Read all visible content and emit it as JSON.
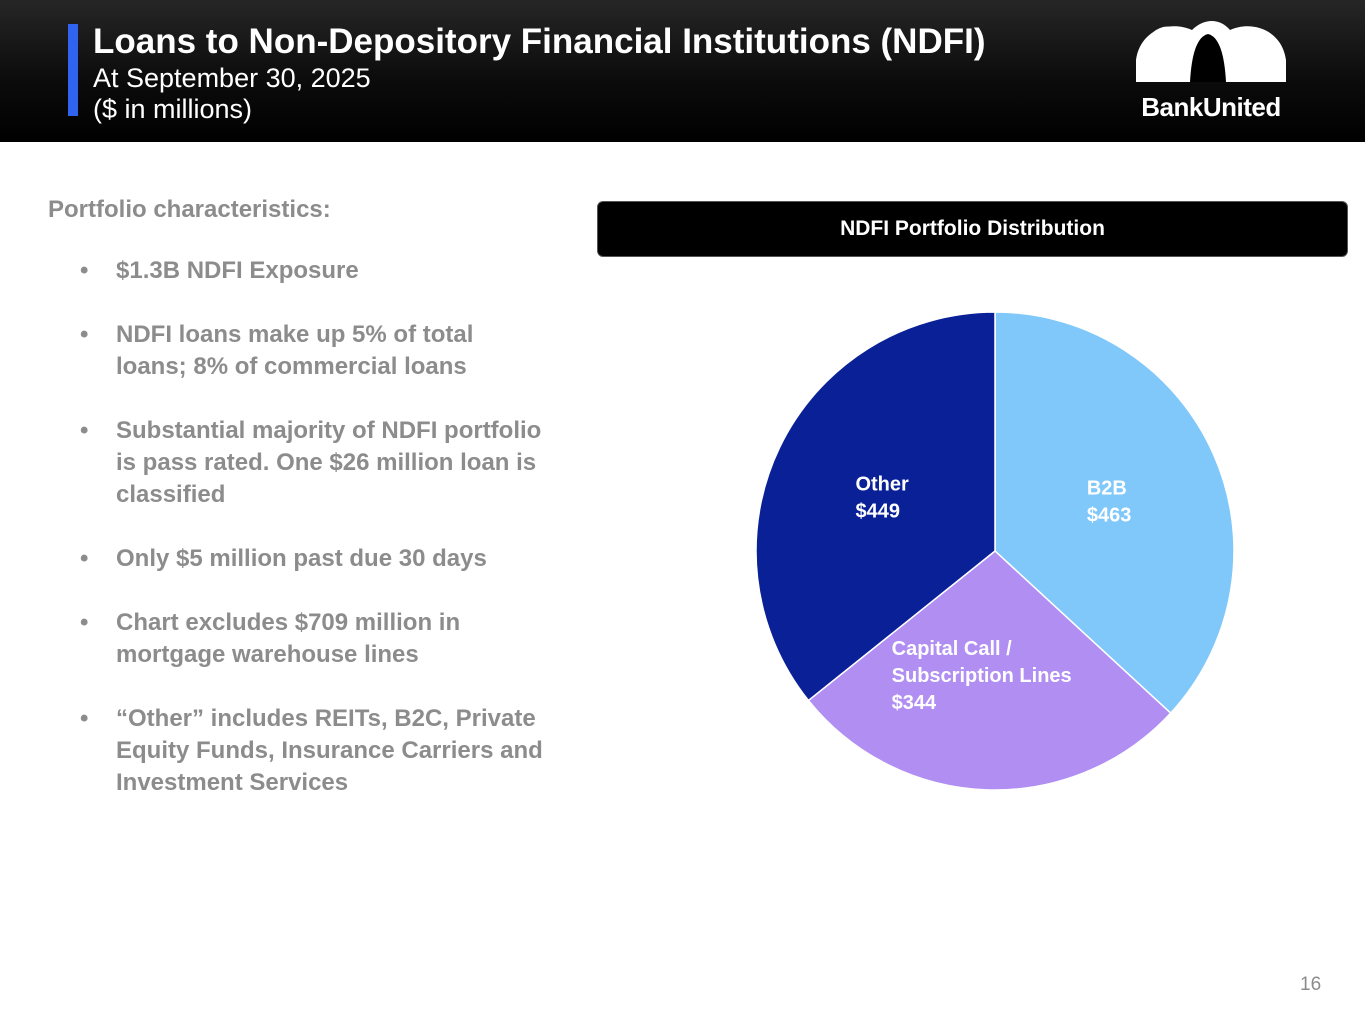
{
  "header": {
    "title": "Loans to Non-Depository Financial Institutions (NDFI)",
    "subtitle_line1": "At September 30, 2025",
    "subtitle_line2": "($ in millions)",
    "logo_text": "BankUnited"
  },
  "left_panel": {
    "heading": "Portfolio characteristics:",
    "bullet_glyph": "•",
    "bullets": [
      "$1.3B NDFI Exposure",
      "NDFI loans make up 5% of total loans; 8% of commercial loans",
      "Substantial majority of NDFI portfolio is pass rated. One $26 million loan is classified",
      "Only $5 million past due 30 days",
      "Chart excludes $709 million in mortgage warehouse lines",
      "“Other” includes REITs, B2C, Private Equity Funds, Insurance Carriers and Investment Services"
    ]
  },
  "chart_data": {
    "type": "pie",
    "title": "NDFI Portfolio Distribution",
    "unit": "$ in millions",
    "slices": [
      {
        "name": "B2B",
        "value": 463,
        "label_lines": [
          "B2B",
          "$463"
        ],
        "color": "#80c8fa"
      },
      {
        "name": "Capital Call / Subscription Lines",
        "value": 344,
        "label_lines": [
          "Capital Call /",
          "Subscription Lines",
          "$344"
        ],
        "color": "#b18ef2"
      },
      {
        "name": "Other",
        "value": 449,
        "label_lines": [
          "Other",
          "$449"
        ],
        "color": "#0a2096"
      }
    ]
  },
  "footer": {
    "page_number": "16"
  },
  "colors": {
    "accent_bar": "#2f63f0",
    "text_gray": "#8c8c8c",
    "header_bg": "#000000"
  }
}
